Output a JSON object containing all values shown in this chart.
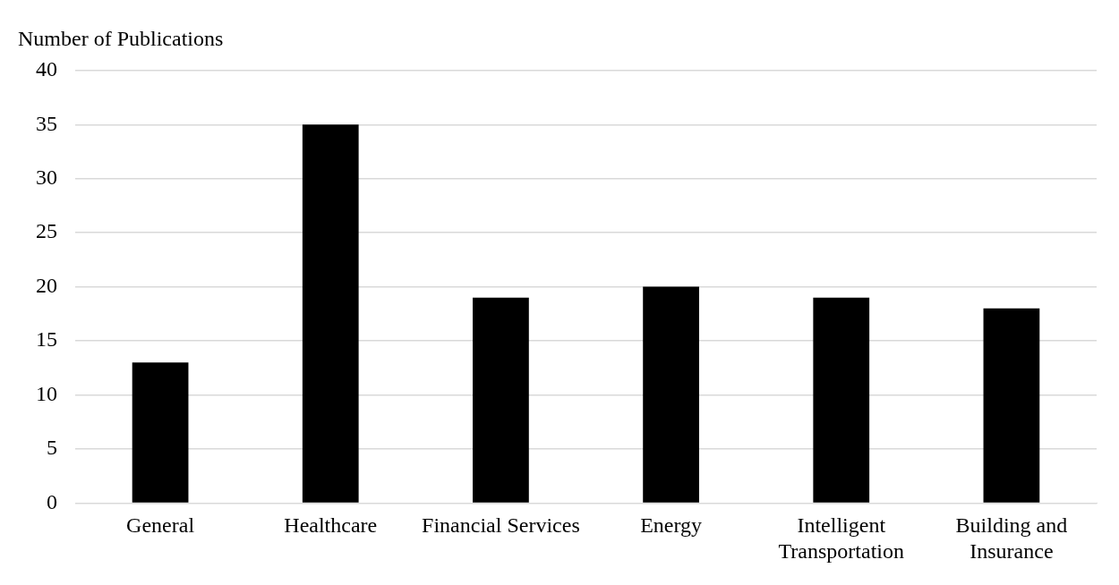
{
  "chart_data": {
    "type": "bar",
    "ylabel": "Number of Publications",
    "categories": [
      "General",
      "Healthcare",
      "Financial Services",
      "Energy",
      "Intelligent Transportation",
      "Building and Insurance"
    ],
    "values": [
      13,
      35,
      19,
      20,
      19,
      18
    ],
    "color": "#000000",
    "ylim": [
      0,
      40
    ],
    "yticks": [
      0,
      5,
      10,
      15,
      20,
      25,
      30,
      35,
      40
    ],
    "grid": "y"
  }
}
